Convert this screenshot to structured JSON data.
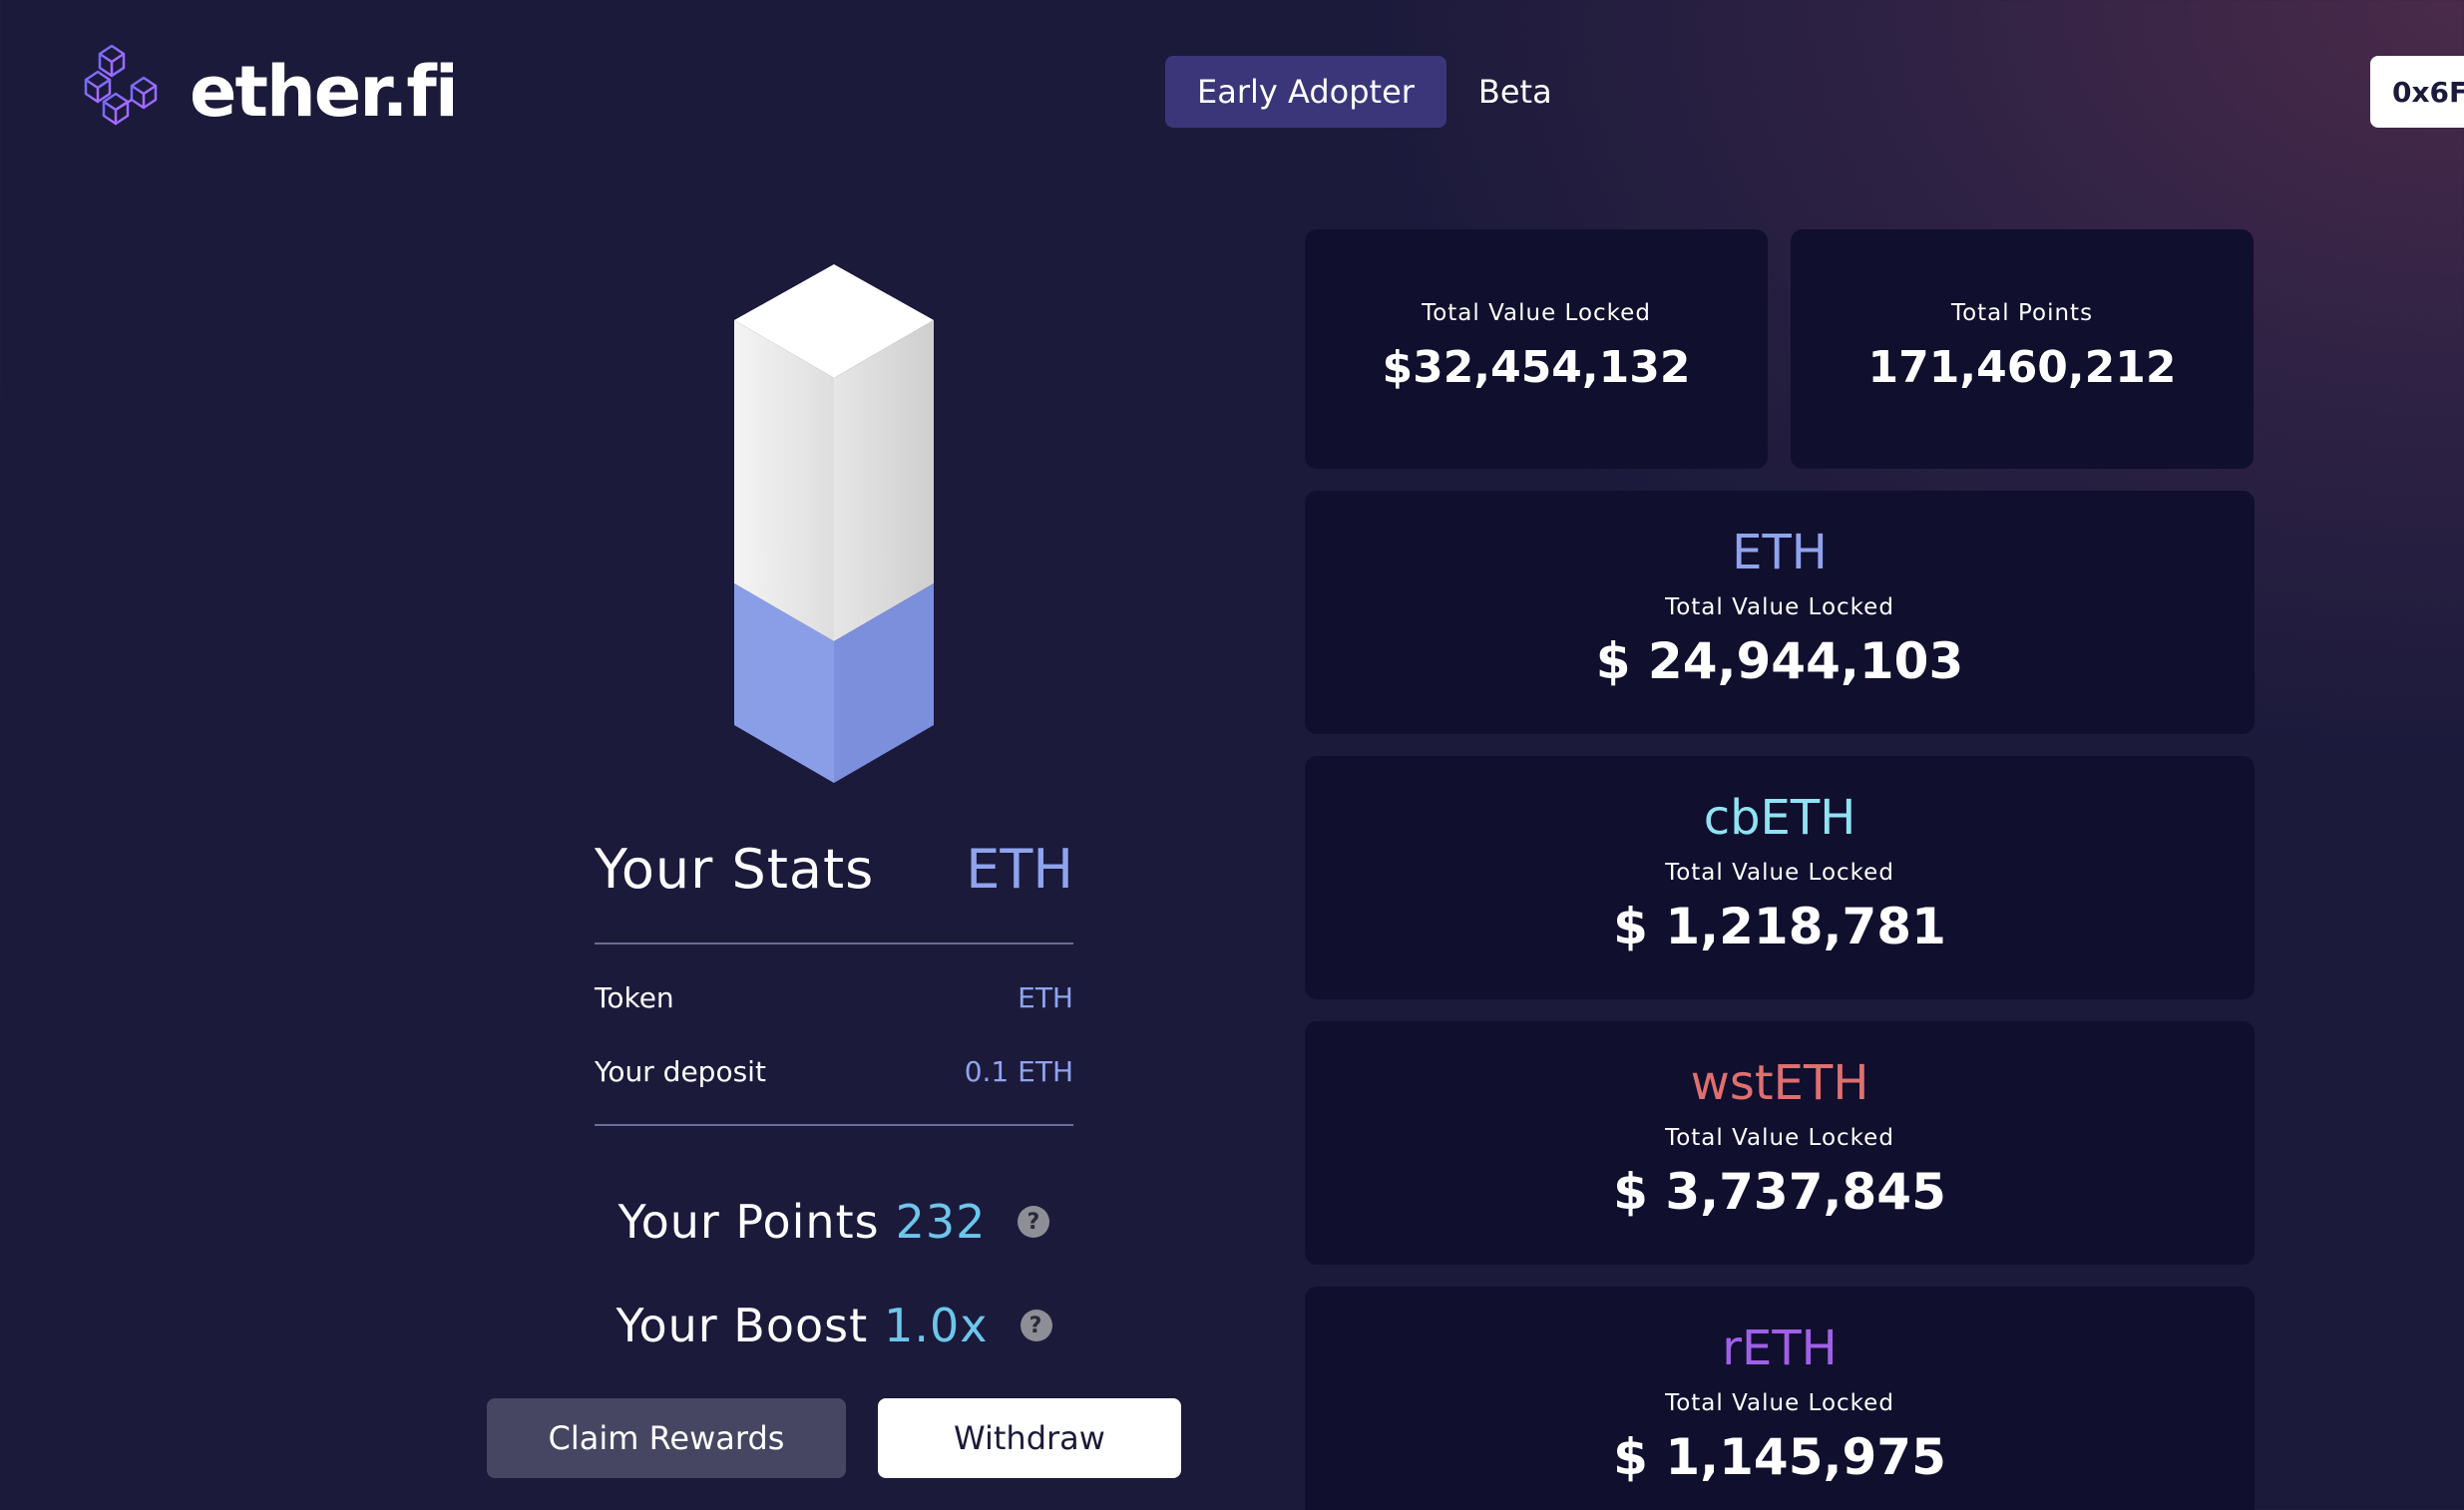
{
  "header": {
    "brand": "ether.fi",
    "tabs": [
      {
        "label": "Early Adopter",
        "active": true
      },
      {
        "label": "Beta",
        "active": false
      }
    ],
    "wallet_label": "0x6F"
  },
  "stats": {
    "title": "Your Stats",
    "token_heading": "ETH",
    "rows": [
      {
        "label": "Token",
        "value": "ETH"
      },
      {
        "label": "Your deposit",
        "value": "0.1 ETH"
      }
    ],
    "points_label": "Your Points",
    "points_value": "232",
    "boost_label": "Your Boost",
    "boost_value": "1.0x",
    "help_glyph": "?"
  },
  "actions": {
    "claim_label": "Claim Rewards",
    "withdraw_label": "Withdraw"
  },
  "totals": {
    "tvl_label": "Total Value Locked",
    "tvl_value": "$32,454,132",
    "points_label": "Total Points",
    "points_value": "171,460,212"
  },
  "assets": [
    {
      "name": "ETH",
      "label": "Total Value Locked",
      "value": "$ 24,944,103",
      "color": "#8fa4ee"
    },
    {
      "name": "cbETH",
      "label": "Total Value Locked",
      "value": "$ 1,218,781",
      "color": "#8fe3f3"
    },
    {
      "name": "wstETH",
      "label": "Total Value Locked",
      "value": "$ 3,737,845",
      "color": "#e06f6f"
    },
    {
      "name": "rETH",
      "label": "Total Value Locked",
      "value": "$ 1,145,975",
      "color": "#a060e8"
    }
  ],
  "colors": {
    "background": "#1b1a3b",
    "card": "#100f2d",
    "accent_blue": "#8fa4ee",
    "accent_cyan": "#6dc6ec",
    "active_tab": "#3a3679"
  },
  "deposit_fill_fraction": 0.38
}
